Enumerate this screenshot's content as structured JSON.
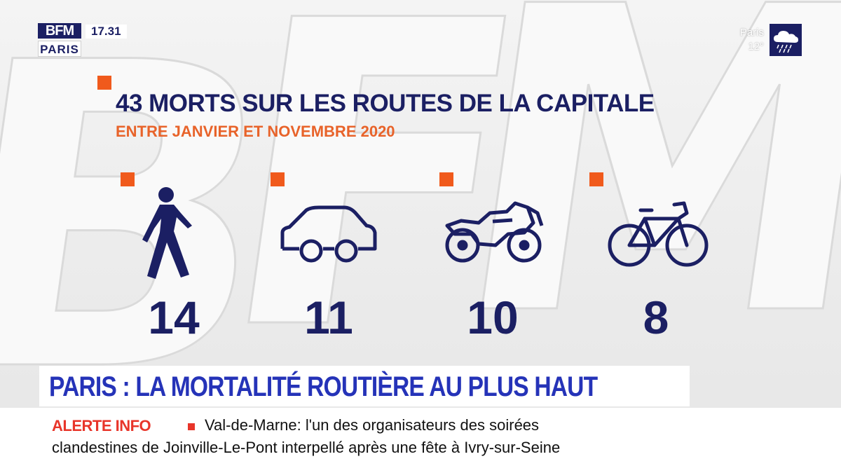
{
  "header": {
    "logo_top": "BFM",
    "logo_bottom": "PARIS",
    "clock": "17.31"
  },
  "weather": {
    "city": "Paris",
    "temp": "12°",
    "icon": "rain-cloud-icon"
  },
  "infographic": {
    "title": "43 MORTS SUR LES ROUTES DE LA CAPITALE",
    "subtitle": "ENTRE JANVIER ET NOVEMBRE 2020",
    "stats": [
      {
        "icon": "pedestrian-icon",
        "value": "14"
      },
      {
        "icon": "car-icon",
        "value": "11"
      },
      {
        "icon": "motorcycle-icon",
        "value": "10"
      },
      {
        "icon": "bicycle-icon",
        "value": "8"
      }
    ]
  },
  "headline": "PARIS : LA MORTALITÉ ROUTIÈRE AU PLUS HAUT",
  "ticker": {
    "label": "ALERTE INFO",
    "line1": "Val-de-Marne: l'un des organisateurs des soirées",
    "line2": "clandestines de Joinville-Le-Pont interpellé après une fête à Ivry-sur-Seine"
  },
  "colors": {
    "navy": "#1b1f63",
    "orange": "#e8632a",
    "headline_blue": "#2533b8",
    "alert_red": "#e8352a"
  }
}
